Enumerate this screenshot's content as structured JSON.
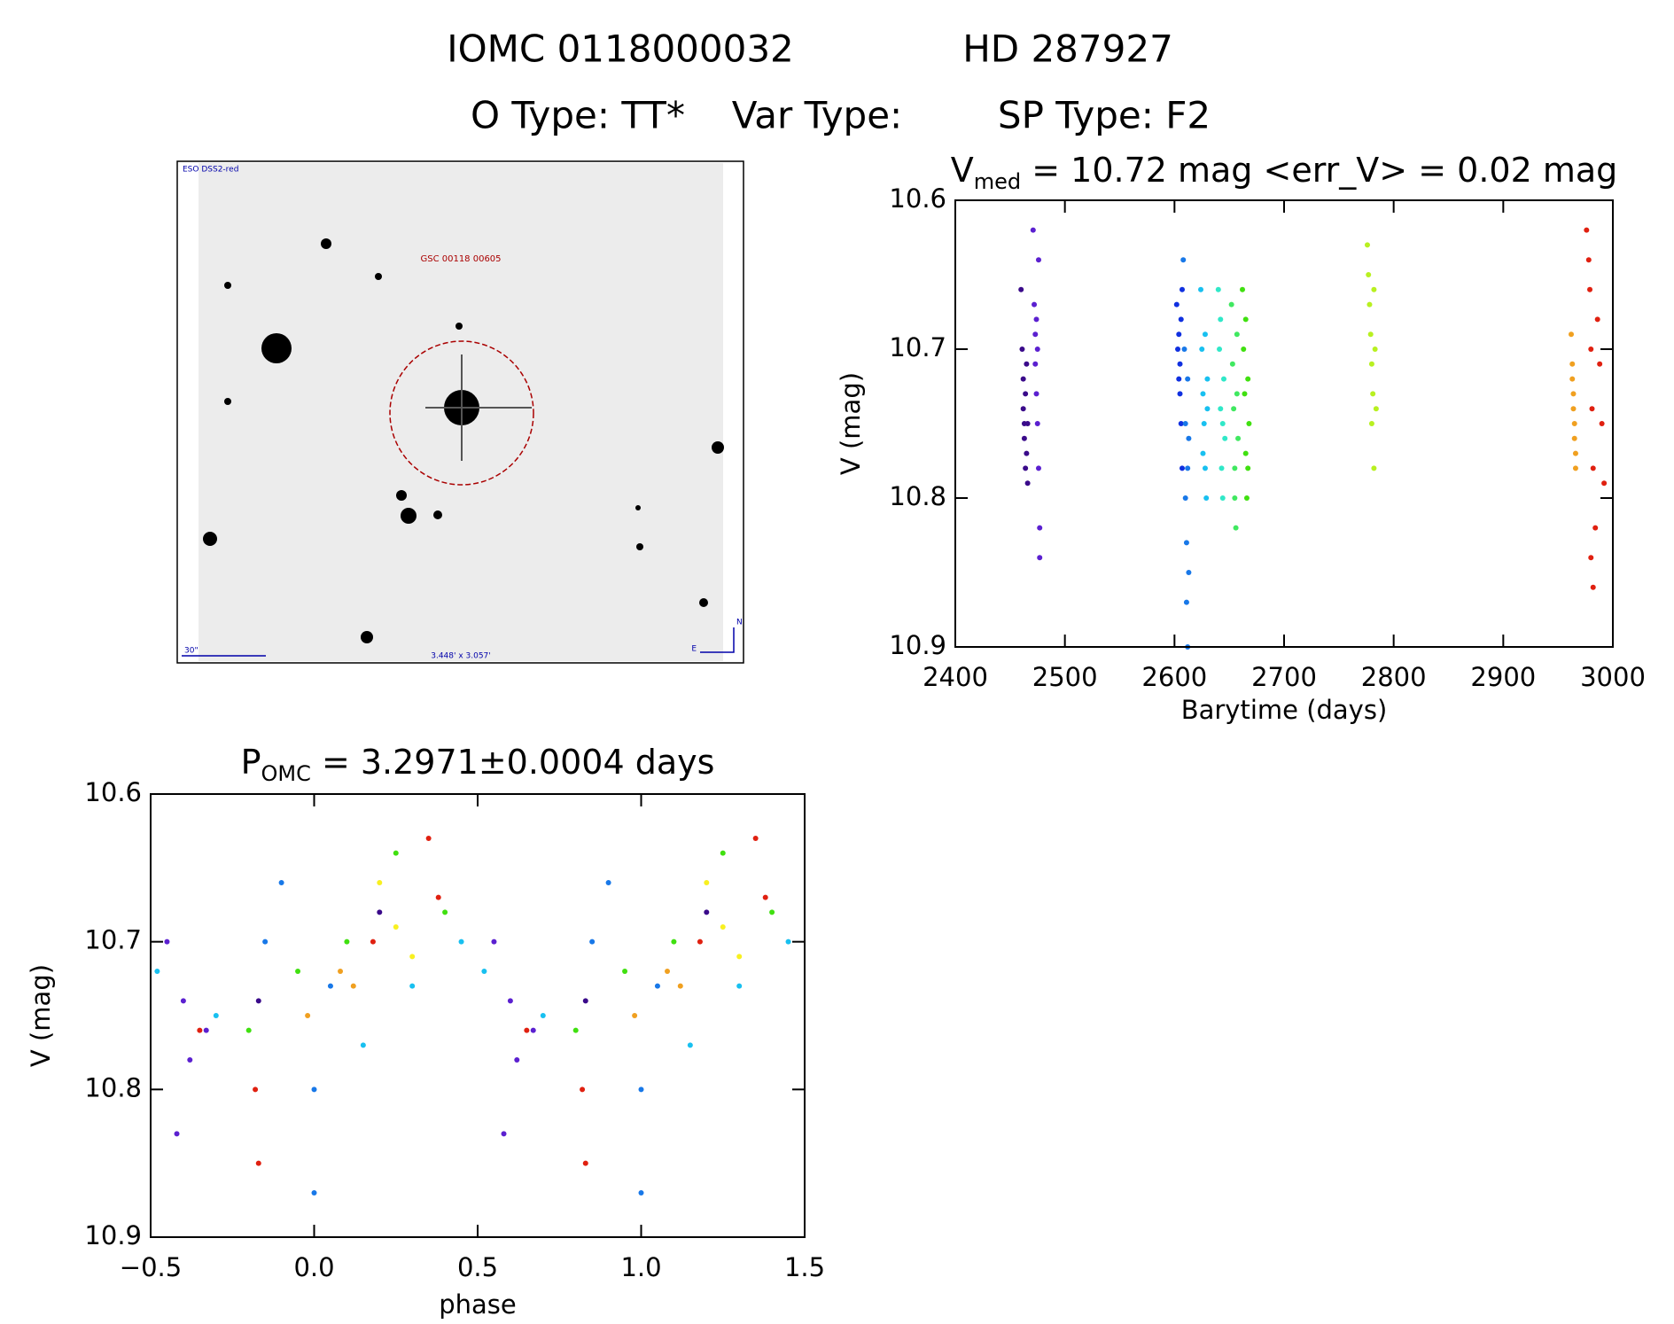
{
  "header": {
    "id": "IOMC 0118000032",
    "name": "HD 287927",
    "otype": "O Type: TT*",
    "vartype": "Var Type:",
    "sptype": "SP Type: F2"
  },
  "image": {
    "survey": "ESO DSS2-red",
    "target": "GSC 00118 00605",
    "scale": "30\"",
    "size": "3.448' x 3.057'",
    "north": "N",
    "east": "E"
  },
  "chart_data": [
    {
      "type": "scatter",
      "title_main": "V",
      "title_sub": "med",
      "title_rest": " = 10.72 mag <err_V> = 0.02 mag",
      "xlabel": "Barytime (days)",
      "ylabel": "V (mag)",
      "xlim": [
        2400,
        3000
      ],
      "ylim": [
        10.6,
        10.9
      ],
      "y_inverted": true,
      "xticks": [
        2400,
        2500,
        2600,
        2700,
        2800,
        2900,
        3000
      ],
      "yticks": [
        10.6,
        10.7,
        10.8,
        10.9
      ],
      "series": [
        {
          "color": "#3a0a8a",
          "x": [
            2460,
            2461,
            2462,
            2462,
            2463,
            2463,
            2464,
            2464,
            2465,
            2465,
            2466,
            2466
          ],
          "values": [
            10.66,
            10.7,
            10.72,
            10.74,
            10.75,
            10.76,
            10.73,
            10.78,
            10.71,
            10.77,
            10.75,
            10.79
          ]
        },
        {
          "color": "#5b20d0",
          "x": [
            2471,
            2472,
            2473,
            2473,
            2474,
            2474,
            2475,
            2475,
            2476,
            2476,
            2477,
            2477
          ],
          "values": [
            10.62,
            10.67,
            10.69,
            10.71,
            10.73,
            10.68,
            10.7,
            10.75,
            10.64,
            10.78,
            10.82,
            10.84
          ]
        },
        {
          "color": "#1030e0",
          "x": [
            2602,
            2603,
            2604,
            2604,
            2605,
            2605,
            2606,
            2606,
            2607,
            2607
          ],
          "values": [
            10.67,
            10.7,
            10.72,
            10.69,
            10.71,
            10.73,
            10.68,
            10.75,
            10.66,
            10.78
          ]
        },
        {
          "color": "#1878e8",
          "x": [
            2608,
            2609,
            2610,
            2610,
            2611,
            2611,
            2612,
            2612,
            2613,
            2613,
            2612
          ],
          "values": [
            10.64,
            10.7,
            10.75,
            10.8,
            10.83,
            10.87,
            10.72,
            10.78,
            10.76,
            10.85,
            10.9
          ]
        },
        {
          "color": "#18c0f0",
          "x": [
            2624,
            2625,
            2626,
            2627,
            2628,
            2629,
            2630,
            2626,
            2628,
            2630
          ],
          "values": [
            10.66,
            10.7,
            10.73,
            10.75,
            10.78,
            10.8,
            10.72,
            10.77,
            10.69,
            10.74
          ]
        },
        {
          "color": "#30e8c8",
          "x": [
            2640,
            2641,
            2642,
            2643,
            2644,
            2645,
            2646,
            2642,
            2644
          ],
          "values": [
            10.66,
            10.7,
            10.74,
            10.78,
            10.8,
            10.72,
            10.76,
            10.68,
            10.75
          ]
        },
        {
          "color": "#40e860",
          "x": [
            2652,
            2653,
            2654,
            2655,
            2656,
            2657,
            2658,
            2655,
            2657
          ],
          "values": [
            10.67,
            10.71,
            10.74,
            10.78,
            10.82,
            10.73,
            10.76,
            10.8,
            10.69
          ]
        },
        {
          "color": "#40e010",
          "x": [
            2662,
            2663,
            2664,
            2665,
            2666,
            2667,
            2668,
            2665,
            2667
          ],
          "values": [
            10.66,
            10.7,
            10.73,
            10.77,
            10.8,
            10.72,
            10.75,
            10.68,
            10.78
          ]
        },
        {
          "color": "#b8f020",
          "x": [
            2776,
            2777,
            2778,
            2779,
            2780,
            2781,
            2782,
            2783,
            2784,
            2780,
            2782
          ],
          "values": [
            10.63,
            10.65,
            10.67,
            10.69,
            10.71,
            10.73,
            10.66,
            10.7,
            10.74,
            10.75,
            10.78
          ]
        },
        {
          "color": "#f0a020",
          "x": [
            2962,
            2963,
            2963,
            2964,
            2964,
            2965,
            2965,
            2966,
            2966
          ],
          "values": [
            10.69,
            10.71,
            10.72,
            10.73,
            10.74,
            10.75,
            10.76,
            10.77,
            10.78
          ]
        },
        {
          "color": "#e02010",
          "x": [
            2976,
            2978,
            2979,
            2980,
            2981,
            2982,
            2984,
            2986,
            2988,
            2990,
            2992,
            2980,
            2982
          ],
          "values": [
            10.62,
            10.64,
            10.66,
            10.7,
            10.74,
            10.78,
            10.82,
            10.68,
            10.71,
            10.75,
            10.79,
            10.84,
            10.86
          ]
        }
      ]
    },
    {
      "type": "scatter",
      "title_main": "P",
      "title_sub": "OMC",
      "title_rest": " = 3.2971±0.0004 days",
      "xlabel": "phase",
      "ylabel": "V (mag)",
      "xlim": [
        -0.5,
        1.5
      ],
      "ylim": [
        10.6,
        10.9
      ],
      "y_inverted": true,
      "xticks": [
        {
          "value": -0.5,
          "label": "−0.5"
        },
        {
          "value": 0,
          "label": "0.0"
        },
        0.5,
        {
          "value": 1,
          "label": "1.0"
        },
        1.5
      ],
      "yticks": [
        10.6,
        10.7,
        10.8,
        10.9
      ],
      "series": [
        {
          "color": "#5b20d0",
          "x": [
            -0.45,
            -0.4,
            -0.38,
            -0.33,
            0.55,
            0.6,
            0.62,
            0.67,
            -0.42,
            0.58
          ],
          "values": [
            10.7,
            10.74,
            10.78,
            10.76,
            10.7,
            10.74,
            10.78,
            10.76,
            10.83,
            10.83
          ]
        },
        {
          "color": "#1878e8",
          "x": [
            -0.15,
            -0.1,
            0.0,
            0.0,
            0.05,
            0.85,
            0.9,
            1.0,
            1.0,
            1.05
          ],
          "values": [
            10.7,
            10.66,
            10.8,
            10.87,
            10.73,
            10.7,
            10.66,
            10.8,
            10.87,
            10.73
          ]
        },
        {
          "color": "#18c0f0",
          "x": [
            -0.48,
            -0.3,
            0.15,
            0.3,
            0.45,
            0.52,
            0.7,
            1.15,
            1.3,
            1.45
          ],
          "values": [
            10.72,
            10.75,
            10.77,
            10.73,
            10.7,
            10.72,
            10.75,
            10.77,
            10.73,
            10.7
          ]
        },
        {
          "color": "#40e010",
          "x": [
            -0.2,
            -0.05,
            0.1,
            0.25,
            0.4,
            0.8,
            0.95,
            1.1,
            1.25,
            1.4
          ],
          "values": [
            10.76,
            10.72,
            10.7,
            10.64,
            10.68,
            10.76,
            10.72,
            10.7,
            10.64,
            10.68
          ]
        },
        {
          "color": "#f8f020",
          "x": [
            0.2,
            0.25,
            0.3,
            1.2,
            1.25,
            1.3
          ],
          "values": [
            10.66,
            10.69,
            10.71,
            10.66,
            10.69,
            10.71
          ]
        },
        {
          "color": "#f0a020",
          "x": [
            0.08,
            0.12,
            -0.02,
            1.08,
            1.12,
            0.98
          ],
          "values": [
            10.72,
            10.73,
            10.75,
            10.72,
            10.73,
            10.75
          ]
        },
        {
          "color": "#e02010",
          "x": [
            -0.35,
            -0.18,
            -0.17,
            0.18,
            0.35,
            0.38,
            0.65,
            0.82,
            0.83,
            1.18,
            1.35,
            1.38
          ],
          "values": [
            10.76,
            10.8,
            10.85,
            10.7,
            10.63,
            10.67,
            10.76,
            10.8,
            10.85,
            10.7,
            10.63,
            10.67
          ]
        },
        {
          "color": "#3a0a8a",
          "x": [
            -0.17,
            0.83,
            0.2,
            1.2
          ],
          "values": [
            10.74,
            10.74,
            10.68,
            10.68
          ]
        }
      ]
    }
  ]
}
